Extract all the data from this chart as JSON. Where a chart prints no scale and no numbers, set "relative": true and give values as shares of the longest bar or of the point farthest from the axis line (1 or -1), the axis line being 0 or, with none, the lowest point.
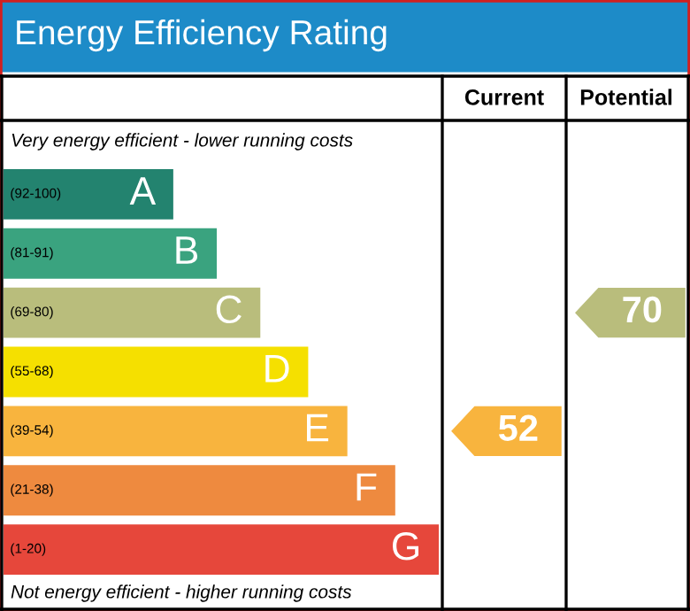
{
  "chart_data": {
    "type": "bar",
    "orientation": "horizontal",
    "relative": true,
    "title": "Energy Efficiency Rating",
    "categories": [
      "A",
      "B",
      "C",
      "D",
      "E",
      "F",
      "G"
    ],
    "values": [
      0.39,
      0.49,
      0.59,
      0.7,
      0.79,
      0.9,
      1
    ],
    "colors": [
      "#23836f",
      "#3aa37f",
      "#b9bd7c",
      "#f5e000",
      "#f8b43e",
      "#ee8a3f",
      "#e6473b"
    ],
    "annotations": [
      "Very energy efficient - lower running costs",
      "Not energy efficient - higher running costs",
      "Current",
      "Potential",
      "52",
      "70",
      "(92-100)",
      "(81-91)",
      "(69-80)",
      "(55-68)",
      "(39-54)",
      "(21-38)",
      "(1-20)"
    ]
  }
}
